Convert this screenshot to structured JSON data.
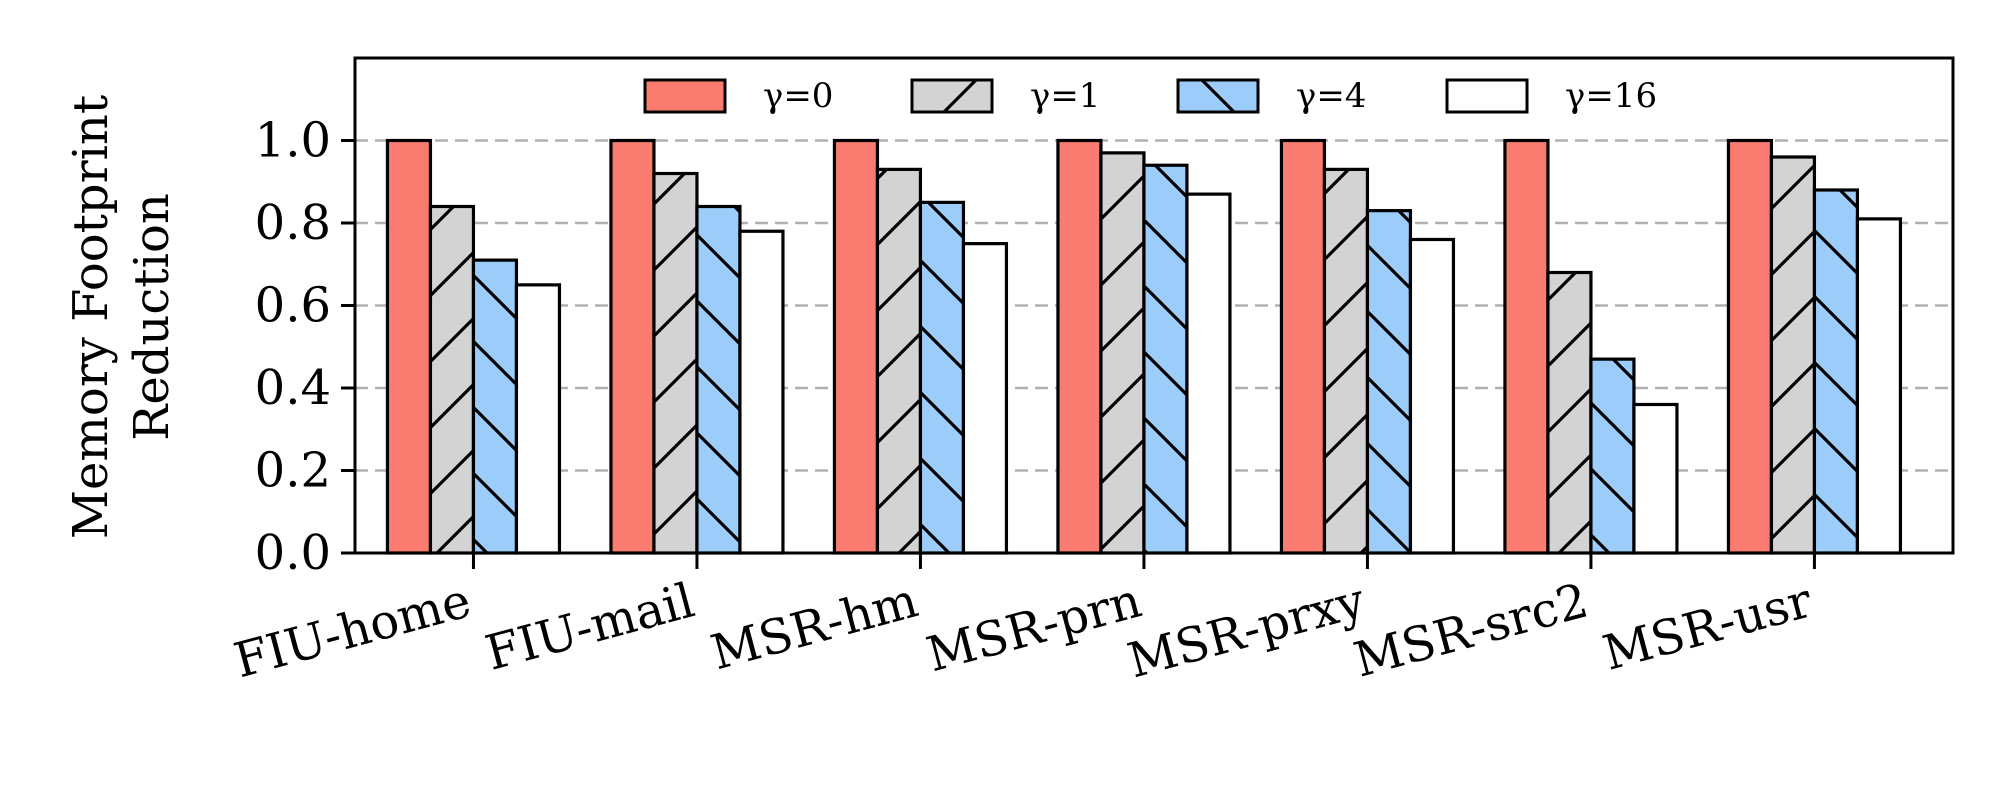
{
  "chart_data": {
    "type": "bar",
    "ylabel_lines": [
      "Memory Footprint",
      "Reduction"
    ],
    "categories": [
      "FIU-home",
      "FIU-mail",
      "MSR-hm",
      "MSR-prn",
      "MSR-prxy",
      "MSR-src2",
      "MSR-usr"
    ],
    "series": [
      {
        "name": "γ=0",
        "values": [
          1.0,
          1.0,
          1.0,
          1.0,
          1.0,
          1.0,
          1.0
        ],
        "color": "#fa7b6f",
        "hatch": "none"
      },
      {
        "name": "γ=1",
        "values": [
          0.84,
          0.92,
          0.93,
          0.97,
          0.93,
          0.68,
          0.96
        ],
        "color": "#d3d3d3",
        "hatch": "forward"
      },
      {
        "name": "γ=4",
        "values": [
          0.71,
          0.84,
          0.85,
          0.94,
          0.83,
          0.47,
          0.88
        ],
        "color": "#9ccdfa",
        "hatch": "back"
      },
      {
        "name": "γ=16",
        "values": [
          0.65,
          0.78,
          0.75,
          0.87,
          0.76,
          0.36,
          0.81
        ],
        "color": "#ffffff",
        "hatch": "none"
      }
    ],
    "ylim": [
      0,
      1.2
    ],
    "yticks": [
      "0.0",
      "0.2",
      "0.4",
      "0.6",
      "0.8",
      "1.0"
    ],
    "grid": "y-dashed",
    "legend_position": "top-center"
  }
}
